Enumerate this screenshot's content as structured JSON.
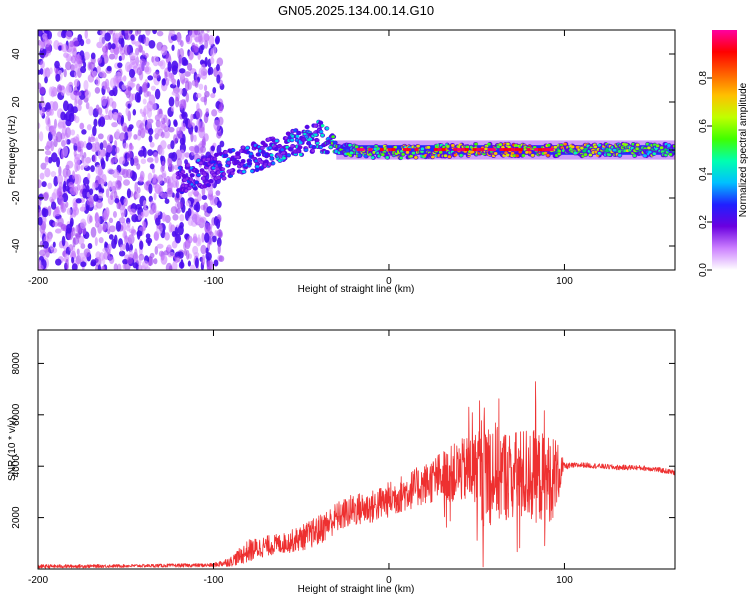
{
  "page": {
    "title": "GN05.2025.134.00.14.G10"
  },
  "chart_data": [
    {
      "type": "heatmap",
      "title": "GN05.2025.134.00.14.G10",
      "xlabel": "Height of straight line (km)",
      "ylabel": "Frequency (Hz)",
      "xlim": [
        -200,
        163
      ],
      "ylim": [
        -50,
        50
      ],
      "x_ticks": [
        -200,
        -100,
        0,
        100
      ],
      "x_tick_labels": [
        "-200",
        "-100",
        "0",
        "100"
      ],
      "y_ticks": [
        -40,
        -20,
        0,
        20,
        40
      ],
      "y_tick_labels": [
        "-40",
        "-20",
        "0",
        "20",
        "40"
      ],
      "colorbar": {
        "label": "Normalized spectral amplitude",
        "range": [
          0,
          1
        ],
        "ticks": [
          0,
          0.2,
          0.4,
          0.6,
          0.8
        ],
        "tick_labels": [
          "0.0",
          "0.2",
          "0.4",
          "0.6",
          "0.8"
        ],
        "colors": [
          "#ffffff",
          "#cc80ff",
          "#6a00e0",
          "#2020ff",
          "#00c0ff",
          "#00ffb0",
          "#40ff00",
          "#c0ff00",
          "#ffc000",
          "#ff6000",
          "#ff0000",
          "#ff00a0"
        ]
      },
      "signal_track": {
        "noise_region_x": [
          -200,
          -95
        ],
        "noise_value": 0.2,
        "ramp_points": [
          {
            "x": -120,
            "freq": -13,
            "amp": 0.35
          },
          {
            "x": -100,
            "freq": -8,
            "amp": 0.35
          },
          {
            "x": -80,
            "freq": -4,
            "amp": 0.4
          },
          {
            "x": -60,
            "freq": 2,
            "amp": 0.45
          },
          {
            "x": -40,
            "freq": 6,
            "amp": 0.45
          },
          {
            "x": -30,
            "freq": 0,
            "amp": 0.6
          },
          {
            "x": 0,
            "freq": -1,
            "amp": 0.7
          },
          {
            "x": 50,
            "freq": 0,
            "amp": 0.85
          },
          {
            "x": 90,
            "freq": 0,
            "amp": 0.85
          },
          {
            "x": 163,
            "freq": 0,
            "amp": 0.6
          }
        ],
        "band_color": "#00d060"
      }
    },
    {
      "type": "line",
      "xlabel": "Height of straight line (km)",
      "ylabel": "SNR (10 * v/v)",
      "xlim": [
        -200,
        163
      ],
      "ylim": [
        0,
        9300
      ],
      "x_ticks": [
        -200,
        -100,
        0,
        100
      ],
      "x_tick_labels": [
        "-200",
        "-100",
        "0",
        "100"
      ],
      "y_ticks": [
        2000,
        4000,
        6000,
        8000
      ],
      "y_tick_labels": [
        "2000",
        "4000",
        "6000",
        "8000"
      ],
      "color": "#ee3030",
      "envelope": {
        "x": [
          -200,
          -150,
          -100,
          -90,
          -80,
          -70,
          -60,
          -50,
          -40,
          -30,
          -20,
          -10,
          0,
          10,
          20,
          30,
          40,
          50,
          55,
          60,
          70,
          80,
          90,
          95,
          100,
          110,
          120,
          130,
          140,
          150,
          163
        ],
        "mean": [
          100,
          120,
          150,
          300,
          700,
          900,
          1000,
          1200,
          1500,
          2000,
          2300,
          2400,
          2700,
          3000,
          3300,
          3600,
          3800,
          3900,
          4000,
          3800,
          3600,
          3700,
          3500,
          3600,
          4000,
          4050,
          4000,
          3950,
          3950,
          3900,
          3750
        ],
        "spread": [
          150,
          120,
          150,
          400,
          900,
          800,
          800,
          1000,
          1200,
          1200,
          1300,
          1300,
          1400,
          1500,
          1600,
          2000,
          2400,
          3000,
          5200,
          4000,
          3500,
          3800,
          3500,
          3200,
          250,
          200,
          200,
          200,
          200,
          200,
          200
        ]
      }
    }
  ]
}
